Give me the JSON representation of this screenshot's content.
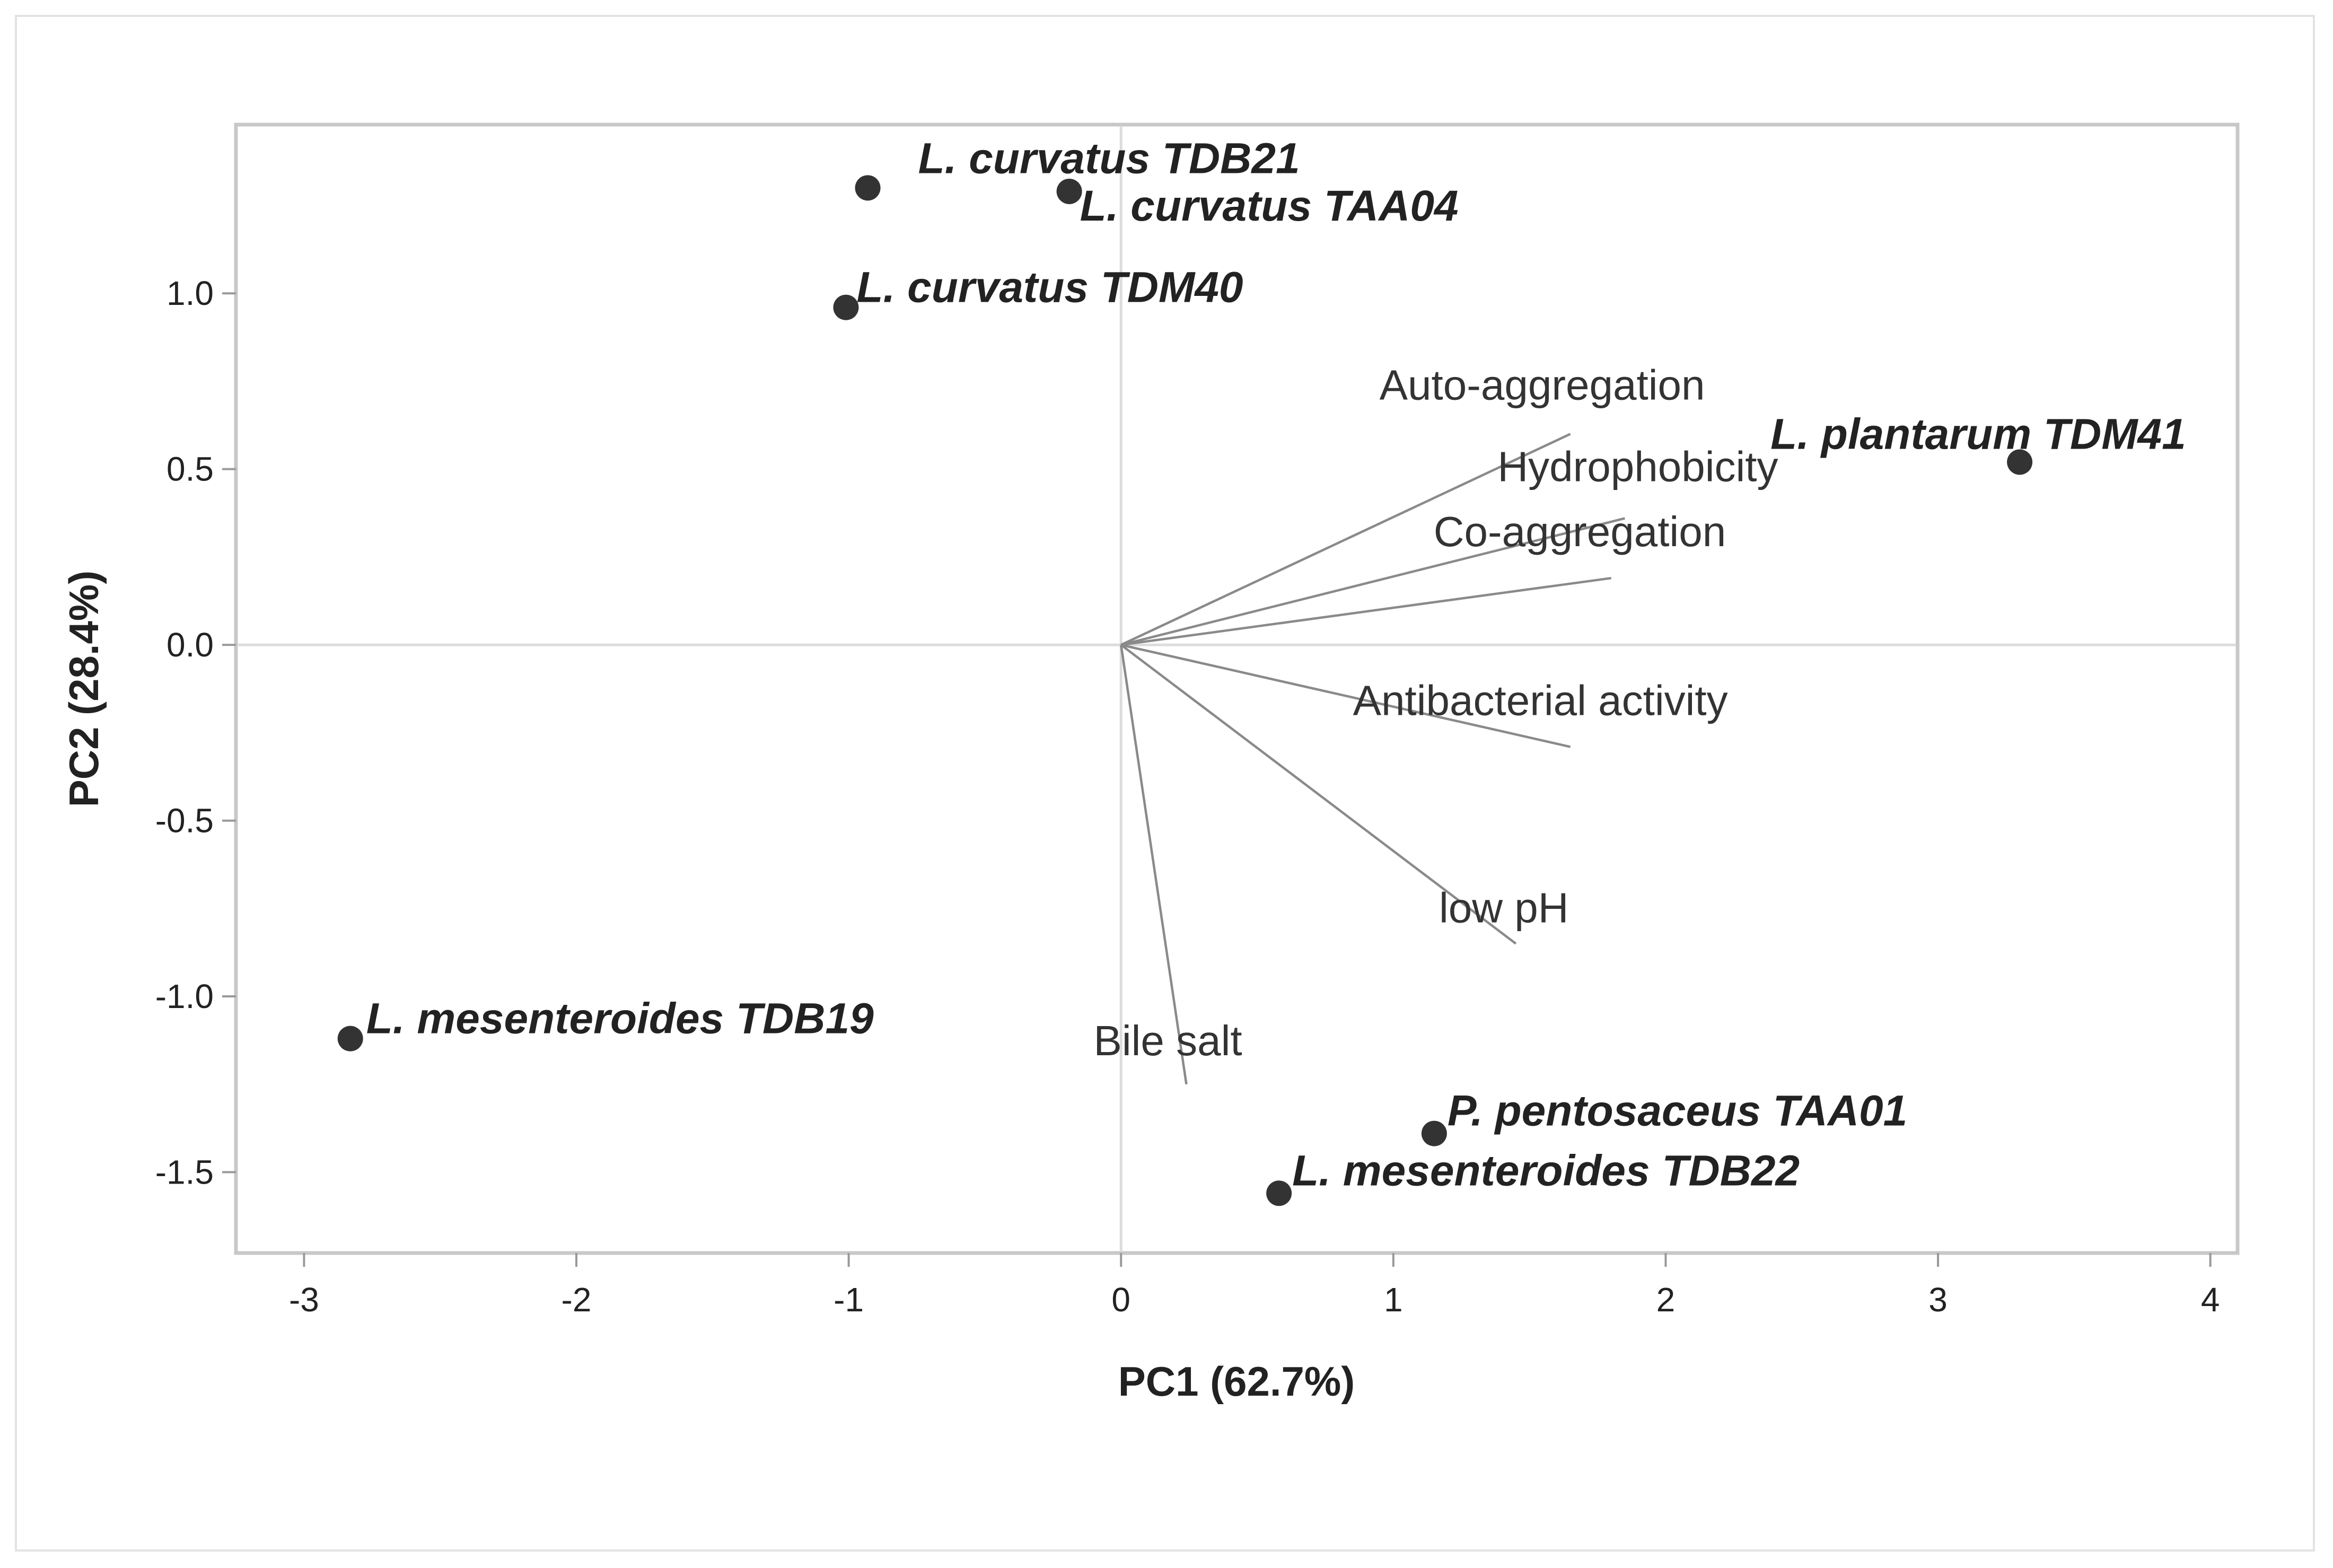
{
  "chart_data": {
    "type": "scatter",
    "title": "",
    "xlabel": "PC1 (62.7%)",
    "ylabel": "PC2 (28.4%)",
    "xlim": [
      -3.25,
      4.1
    ],
    "ylim": [
      -1.73,
      1.48
    ],
    "xticks": [
      -3,
      -2,
      -1,
      0,
      1,
      2,
      3,
      4
    ],
    "yticks": [
      -1.5,
      -1.0,
      -0.5,
      0.0,
      0.5,
      1.0
    ],
    "ytick_labels": [
      "-1.5",
      "-1.0",
      "-0.5",
      "0.0",
      "0.5",
      "1.0"
    ],
    "grid": false,
    "reference_lines": {
      "x": 0,
      "y": 0
    },
    "points": [
      {
        "label": "L. curvatus TDB21",
        "x": -0.93,
        "y": 1.3
      },
      {
        "label": "L. curvatus TAA04",
        "x": -0.19,
        "y": 1.29
      },
      {
        "label": "L. curvatus TDM40",
        "x": -1.01,
        "y": 0.96
      },
      {
        "label": "L. plantarum TDM41",
        "x": 3.3,
        "y": 0.52
      },
      {
        "label": "L. mesenteroides TDB19",
        "x": -2.83,
        "y": -1.12
      },
      {
        "label": "P. pentosaceus TAA01",
        "x": 1.15,
        "y": -1.39
      },
      {
        "label": "L. mesenteroides TDB22",
        "x": 0.58,
        "y": -1.56
      }
    ],
    "loadings": [
      {
        "label": "Auto-aggregation",
        "x": 1.65,
        "y": 0.6
      },
      {
        "label": "Hydrophobicity",
        "x": 1.85,
        "y": 0.36
      },
      {
        "label": "Co-aggregation",
        "x": 1.8,
        "y": 0.19
      },
      {
        "label": "Antibacterial activity",
        "x": 1.65,
        "y": -0.29
      },
      {
        "label": "low pH",
        "x": 1.45,
        "y": -0.85
      },
      {
        "label": "Bile salt",
        "x": 0.24,
        "y": -1.25
      }
    ]
  }
}
